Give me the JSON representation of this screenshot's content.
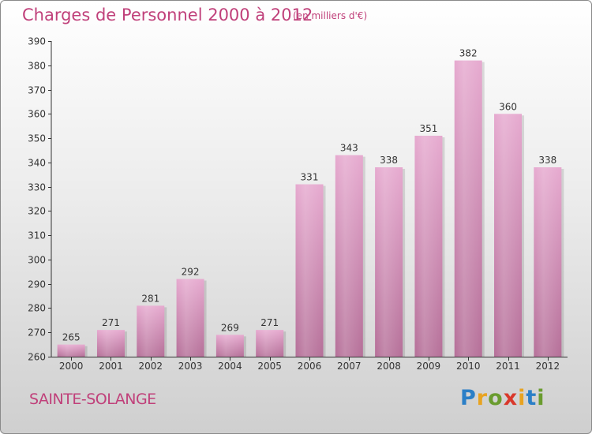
{
  "header": {
    "title": "Charges de Personnel 2000 à 2012",
    "unit_note": "(en milliers d'€)"
  },
  "footer": {
    "location": "SAINTE-SOLANGE",
    "brand": "Proxiti"
  },
  "colors": {
    "bar_top": "#e6a9cf",
    "bar_bottom": "#b56f98",
    "title": "#c0407a",
    "axis": "#333333"
  },
  "chart_data": {
    "type": "bar",
    "title": "Charges de Personnel 2000 à 2012",
    "subtitle": "(en milliers d'€)",
    "xlabel": "",
    "ylabel": "",
    "categories": [
      "2000",
      "2001",
      "2002",
      "2003",
      "2004",
      "2005",
      "2006",
      "2007",
      "2008",
      "2009",
      "2010",
      "2011",
      "2012"
    ],
    "values": [
      265,
      271,
      281,
      292,
      269,
      271,
      331,
      343,
      338,
      351,
      382,
      360,
      338
    ],
    "ylim": [
      260,
      390
    ],
    "yticks": [
      260,
      270,
      280,
      290,
      300,
      310,
      320,
      330,
      340,
      350,
      360,
      370,
      380,
      390
    ],
    "grid": false,
    "data_labels": true
  }
}
